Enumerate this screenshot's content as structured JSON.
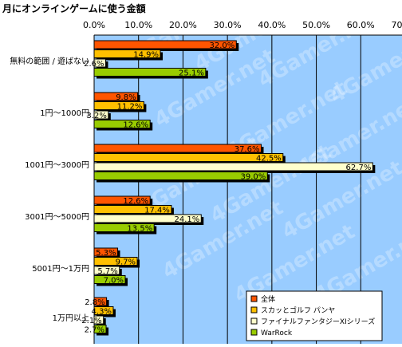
{
  "chart_data": {
    "type": "bar",
    "orientation": "horizontal",
    "title": "月にオンラインゲームに使う金額",
    "xlim": [
      0,
      70
    ],
    "xticks": [
      "0.0%",
      "10.0%",
      "20.0%",
      "30.0%",
      "40.0%",
      "50.0%",
      "60.0%",
      "70.0%"
    ],
    "categories": [
      "無料の範囲 / 遊ばない",
      "1円～1000円",
      "1001円～3000円",
      "3001円～5000円",
      "5001円～1万円",
      "1万円以上"
    ],
    "series": [
      {
        "name": "全体",
        "color": "#ff5500",
        "values": [
          32.0,
          9.8,
          37.6,
          12.6,
          5.3,
          2.8
        ],
        "labels": [
          "32.0%",
          "9.8%",
          "37.6%",
          "12.6%",
          "5.3%",
          "2.8%"
        ]
      },
      {
        "name": "スカッとゴルフ パンヤ",
        "color": "#ffc000",
        "values": [
          14.9,
          11.2,
          42.5,
          17.4,
          9.7,
          4.3
        ],
        "labels": [
          "14.9%",
          "11.2%",
          "42.5%",
          "17.4%",
          "9.7%",
          "4.3%"
        ]
      },
      {
        "name": "ファイナルファンタジーXIシリーズ",
        "color": "#ffffcc",
        "values": [
          2.6,
          3.2,
          62.7,
          24.1,
          5.7,
          2.1
        ],
        "labels": [
          "2.6%",
          "3.2%",
          "62.7%",
          "24.1%",
          "5.7%",
          "2.1%"
        ]
      },
      {
        "name": "WarRock",
        "color": "#99cc00",
        "values": [
          25.1,
          12.6,
          39.0,
          13.5,
          7.0,
          2.7
        ],
        "labels": [
          "25.1%",
          "12.6%",
          "39.0%",
          "13.5%",
          "7.0%",
          "2.7%"
        ]
      }
    ],
    "grid": true,
    "plot_background": "#99ccff",
    "legend_position": "bottom-right",
    "watermark": "4Gamer.net"
  }
}
